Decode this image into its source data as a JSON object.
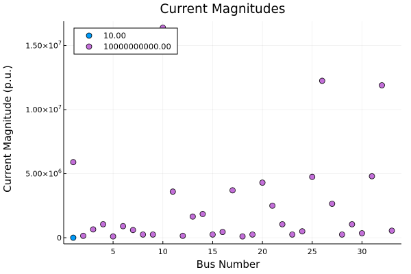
{
  "chart_data": {
    "type": "scatter",
    "title": "Current Magnitudes",
    "xlabel": "Bus Number",
    "ylabel": "Current Magnitude (p.u.)",
    "xlim": [
      0.04,
      33.96
    ],
    "ylim": [
      -480000,
      16900000
    ],
    "grid": true,
    "legend_position": "top-left",
    "x_ticks": [
      {
        "value": 5,
        "label": "5"
      },
      {
        "value": 10,
        "label": "10"
      },
      {
        "value": 15,
        "label": "15"
      },
      {
        "value": 20,
        "label": "20"
      },
      {
        "value": 25,
        "label": "25"
      },
      {
        "value": 30,
        "label": "30"
      }
    ],
    "y_ticks": [
      {
        "value": 0,
        "label": "0",
        "exp": ""
      },
      {
        "value": 5000000,
        "label": "5.00×10",
        "exp": "6"
      },
      {
        "value": 10000000,
        "label": "1.00×10",
        "exp": "7"
      },
      {
        "value": 15000000,
        "label": "1.50×10",
        "exp": "7"
      }
    ],
    "series": [
      {
        "name": "10.00",
        "color": "#009af9",
        "x": [
          1
        ],
        "y": [
          0
        ]
      },
      {
        "name": "10000000000.00",
        "color": "#c36fd9",
        "x": [
          1,
          2,
          3,
          4,
          5,
          6,
          7,
          8,
          9,
          10,
          11,
          12,
          13,
          14,
          15,
          16,
          17,
          18,
          19,
          20,
          21,
          22,
          23,
          24,
          25,
          26,
          27,
          28,
          29,
          30,
          31,
          32,
          33
        ],
        "y": [
          5900000,
          150000,
          650000,
          1050000,
          100000,
          900000,
          600000,
          250000,
          250000,
          16400000,
          3600000,
          150000,
          1650000,
          1850000,
          250000,
          450000,
          3700000,
          100000,
          250000,
          4300000,
          2500000,
          1050000,
          250000,
          500000,
          4750000,
          12250000,
          2650000,
          250000,
          1050000,
          350000,
          4800000,
          11900000,
          550000
        ]
      }
    ]
  }
}
